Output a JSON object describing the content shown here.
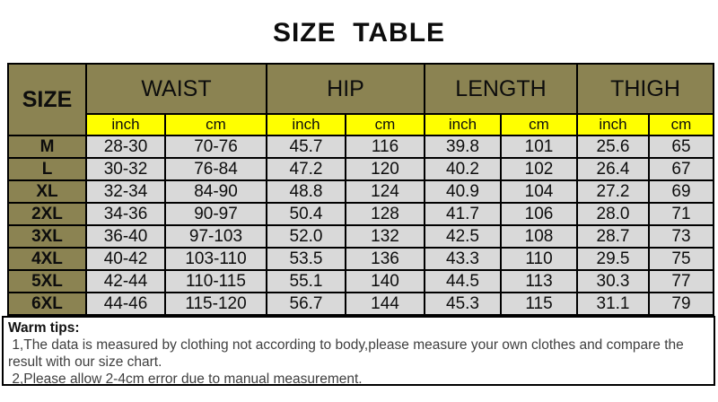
{
  "title": "SIZE  TABLE",
  "colors": {
    "header_bg": "#8B8352",
    "unit_row_bg": "#FFFF00",
    "data_cell_bg": "#D9D9D9",
    "border": "#000000",
    "tips_text": "#3F3F3F"
  },
  "chart_data": {
    "type": "table",
    "title": "SIZE TABLE",
    "size_column_header": "SIZE",
    "column_groups": [
      "WAIST",
      "HIP",
      "LENGTH",
      "THIGH"
    ],
    "unit_columns": [
      "inch",
      "cm",
      "inch",
      "cm",
      "inch",
      "cm",
      "inch",
      "cm"
    ],
    "rows": [
      {
        "size": "M",
        "values": [
          "28-30",
          "70-76",
          "45.7",
          "116",
          "39.8",
          "101",
          "25.6",
          "65"
        ]
      },
      {
        "size": "L",
        "values": [
          "30-32",
          "76-84",
          "47.2",
          "120",
          "40.2",
          "102",
          "26.4",
          "67"
        ]
      },
      {
        "size": "XL",
        "values": [
          "32-34",
          "84-90",
          "48.8",
          "124",
          "40.9",
          "104",
          "27.2",
          "69"
        ]
      },
      {
        "size": "2XL",
        "values": [
          "34-36",
          "90-97",
          "50.4",
          "128",
          "41.7",
          "106",
          "28.0",
          "71"
        ]
      },
      {
        "size": "3XL",
        "values": [
          "36-40",
          "97-103",
          "52.0",
          "132",
          "42.5",
          "108",
          "28.7",
          "73"
        ]
      },
      {
        "size": "4XL",
        "values": [
          "40-42",
          "103-110",
          "53.5",
          "136",
          "43.3",
          "110",
          "29.5",
          "75"
        ]
      },
      {
        "size": "5XL",
        "values": [
          "42-44",
          "110-115",
          "55.1",
          "140",
          "44.5",
          "113",
          "30.3",
          "77"
        ]
      },
      {
        "size": "6XL",
        "values": [
          "44-46",
          "115-120",
          "56.7",
          "144",
          "45.3",
          "115",
          "31.1",
          "79"
        ]
      }
    ]
  },
  "tips": {
    "heading": "Warm tips:",
    "lines": [
      " 1,The data is measured by clothing not according to body,please measure your own clothes and compare the result with our size chart.",
      " 2,Please allow 2-4cm error due to manual measurement."
    ]
  }
}
